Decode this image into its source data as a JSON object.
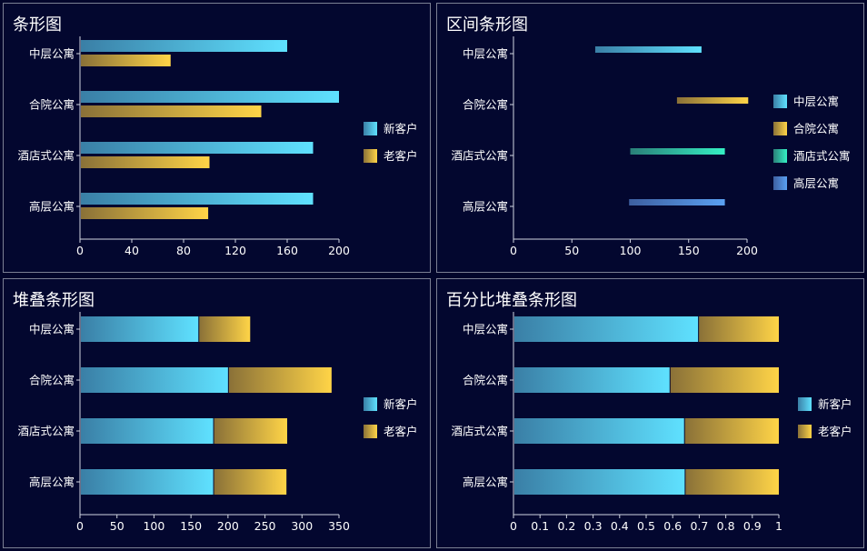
{
  "palette": {
    "cyan": [
      "#3a7fa6",
      "#5fe1ff"
    ],
    "gold": [
      "#8a7138",
      "#ffd447"
    ],
    "teal": [
      "#2a7f78",
      "#35f0c4"
    ],
    "blue": [
      "#3d5fa0",
      "#5aa0f2"
    ],
    "axis": "#d0d4e0",
    "bg": "#03072f"
  },
  "chart_data": [
    {
      "type": "bar",
      "orientation": "horizontal",
      "title": "条形图",
      "categories": [
        "中层公寓",
        "合院公寓",
        "酒店式公寓",
        "高层公寓"
      ],
      "series": [
        {
          "name": "新客户",
          "values": [
            160,
            200,
            180,
            180
          ],
          "color": "cyan"
        },
        {
          "name": "老客户",
          "values": [
            70,
            140,
            100,
            99
          ],
          "color": "gold"
        }
      ],
      "xlim": [
        0,
        200
      ],
      "xticks": [
        0,
        40,
        80,
        120,
        160,
        200
      ],
      "legend_position": "right"
    },
    {
      "type": "range-bar",
      "orientation": "horizontal",
      "title": "区间条形图",
      "categories": [
        "中层公寓",
        "合院公寓",
        "酒店式公寓",
        "高层公寓"
      ],
      "ranges": [
        [
          70,
          161
        ],
        [
          140,
          201
        ],
        [
          100,
          181
        ],
        [
          99,
          181
        ]
      ],
      "colors": [
        "cyan",
        "gold",
        "teal",
        "blue"
      ],
      "legend": [
        "中层公寓",
        "合院公寓",
        "酒店式公寓",
        "高层公寓"
      ],
      "xlim": [
        0,
        200
      ],
      "xticks": [
        0,
        50,
        100,
        150,
        200
      ],
      "legend_position": "right"
    },
    {
      "type": "stacked-bar",
      "orientation": "horizontal",
      "title": "堆叠条形图",
      "categories": [
        "中层公寓",
        "合院公寓",
        "酒店式公寓",
        "高层公寓"
      ],
      "series": [
        {
          "name": "新客户",
          "values": [
            160,
            200,
            180,
            180
          ],
          "color": "cyan"
        },
        {
          "name": "老客户",
          "values": [
            70,
            140,
            100,
            99
          ],
          "color": "gold"
        }
      ],
      "xlim": [
        0,
        350
      ],
      "xticks": [
        0,
        50,
        100,
        150,
        200,
        250,
        300,
        350
      ],
      "legend_position": "right"
    },
    {
      "type": "percent-stacked-bar",
      "orientation": "horizontal",
      "title": "百分比堆叠条形图",
      "categories": [
        "中层公寓",
        "合院公寓",
        "酒店式公寓",
        "高层公寓"
      ],
      "series": [
        {
          "name": "新客户",
          "values": [
            160,
            200,
            180,
            180
          ],
          "color": "cyan"
        },
        {
          "name": "老客户",
          "values": [
            70,
            140,
            100,
            99
          ],
          "color": "gold"
        }
      ],
      "xlim": [
        0,
        1
      ],
      "xticks": [
        "0",
        "0.1",
        "0.2",
        "0.3",
        "0.4",
        "0.5",
        "0.6",
        "0.7",
        "0.8",
        "0.9",
        "1"
      ],
      "legend_position": "right"
    }
  ]
}
